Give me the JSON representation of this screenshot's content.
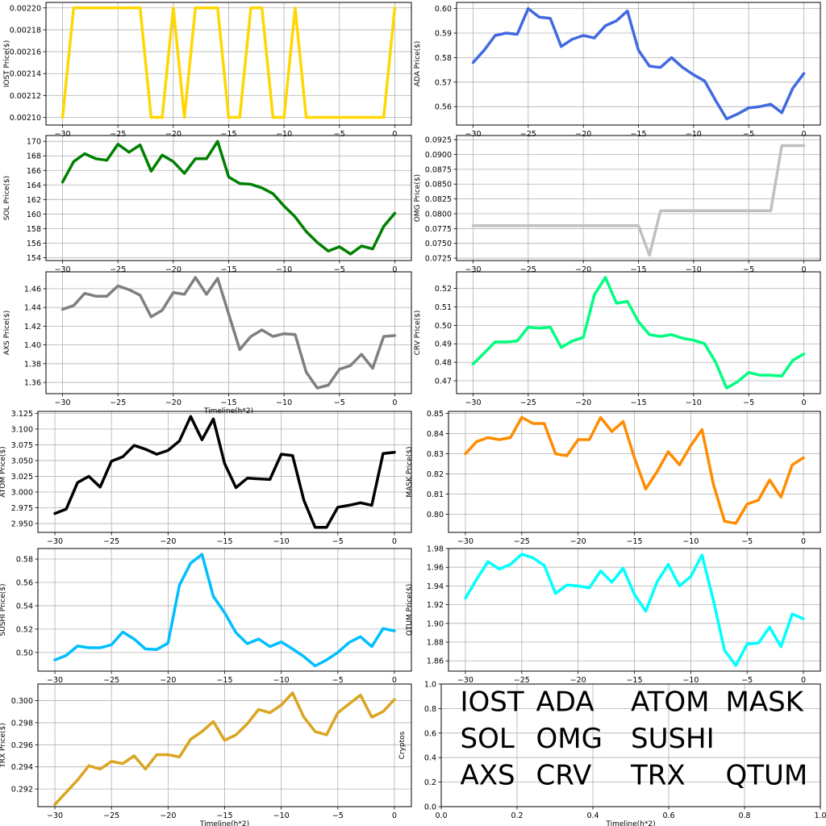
{
  "chart_data": [
    {
      "type": "line",
      "ylabel": "IOST Price($)",
      "xlabel": "",
      "color": "#FFD700",
      "xlim": [
        -31.5,
        1.5
      ],
      "ylim": [
        0.002093,
        0.002205
      ],
      "xticks": [
        -30,
        -25,
        -20,
        -15,
        -10,
        -5,
        0
      ],
      "yticks": [
        0.0021,
        0.00212,
        0.00214,
        0.00216,
        0.00218,
        0.0022
      ],
      "yticklabels": [
        "0.00210",
        "0.00212",
        "0.00214",
        "0.00216",
        "0.00218",
        "0.00220"
      ],
      "x": [
        -30,
        -29,
        -28,
        -27,
        -26,
        -25,
        -24,
        -23,
        -22,
        -21,
        -20,
        -19,
        -18,
        -17,
        -16,
        -15,
        -14,
        -13,
        -12,
        -11,
        -10,
        -9,
        -8,
        -7,
        -6,
        -5,
        -4,
        -3,
        -2,
        -1,
        0
      ],
      "values": [
        0.0021,
        0.0022,
        0.0022,
        0.0022,
        0.0022,
        0.0022,
        0.0022,
        0.0022,
        0.0021,
        0.0021,
        0.0022,
        0.0021,
        0.0022,
        0.0022,
        0.0022,
        0.0021,
        0.0021,
        0.0022,
        0.0022,
        0.0021,
        0.0021,
        0.0022,
        0.0021,
        0.0021,
        0.0021,
        0.0021,
        0.0021,
        0.0021,
        0.0021,
        0.0021,
        0.0022
      ]
    },
    {
      "type": "line",
      "ylabel": "ADA Price($)",
      "xlabel": "",
      "color": "#4169E1",
      "xlim": [
        -31.5,
        1.5
      ],
      "ylim": [
        0.5525,
        0.6025
      ],
      "xticks": [
        -30,
        -25,
        -20,
        -15,
        -10,
        -5,
        0
      ],
      "yticks": [
        0.56,
        0.57,
        0.58,
        0.59,
        0.6
      ],
      "yticklabels": [
        "0.56",
        "0.57",
        "0.58",
        "0.59",
        "0.60"
      ],
      "x": [
        -30,
        -29,
        -28,
        -27,
        -26,
        -25,
        -24,
        -23,
        -22,
        -21,
        -20,
        -19,
        -18,
        -17,
        -16,
        -15,
        -14,
        -13,
        -12,
        -11,
        -10,
        -9,
        -8,
        -7,
        -6,
        -5,
        -4,
        -3,
        -2,
        -1,
        0
      ],
      "values": [
        0.578,
        0.583,
        0.589,
        0.59,
        0.5895,
        0.6,
        0.5965,
        0.596,
        0.5845,
        0.5875,
        0.589,
        0.588,
        0.593,
        0.595,
        0.599,
        0.583,
        0.5765,
        0.576,
        0.58,
        0.576,
        0.573,
        0.5705,
        0.5625,
        0.555,
        0.557,
        0.5595,
        0.56,
        0.561,
        0.5575,
        0.5675,
        0.5735
      ]
    },
    {
      "type": "line",
      "ylabel": "SOL Price($)",
      "xlabel": "",
      "color": "#008000",
      "xlim": [
        -31.5,
        1.5
      ],
      "ylim": [
        153.6,
        170.8
      ],
      "xticks": [
        -30,
        -25,
        -20,
        -15,
        -10,
        -5,
        0
      ],
      "yticks": [
        154,
        156,
        158,
        160,
        162,
        164,
        166,
        168,
        170
      ],
      "yticklabels": [
        "154",
        "156",
        "158",
        "160",
        "162",
        "164",
        "166",
        "168",
        "170"
      ],
      "x": [
        -30,
        -29,
        -28,
        -27,
        -26,
        -25,
        -24,
        -23,
        -22,
        -21,
        -20,
        -19,
        -18,
        -17,
        -16,
        -15,
        -14,
        -13,
        -12,
        -11,
        -10,
        -9,
        -8,
        -7,
        -6,
        -5,
        -4,
        -3,
        -2,
        -1,
        0
      ],
      "values": [
        164.4,
        167.2,
        168.3,
        167.6,
        167.4,
        169.6,
        168.5,
        169.5,
        165.9,
        168.1,
        167.2,
        165.6,
        167.6,
        167.6,
        170.0,
        165.1,
        164.2,
        164.1,
        163.6,
        162.8,
        161.1,
        159.6,
        157.6,
        156.1,
        154.9,
        155.5,
        154.5,
        155.6,
        155.2,
        158.3,
        160.1
      ]
    },
    {
      "type": "line",
      "ylabel": "OMG Price($)",
      "xlabel": "",
      "color": "#C0C0C0",
      "xlim": [
        -31.5,
        1.5
      ],
      "ylim": [
        0.0721,
        0.0932
      ],
      "xticks": [
        -30,
        -25,
        -20,
        -15,
        -10,
        -5,
        0
      ],
      "yticks": [
        0.0725,
        0.075,
        0.0775,
        0.08,
        0.0825,
        0.085,
        0.0875,
        0.09,
        0.0925
      ],
      "yticklabels": [
        "0.0725",
        "0.0750",
        "0.0775",
        "0.0800",
        "0.0825",
        "0.0850",
        "0.0875",
        "0.0900",
        "0.0925"
      ],
      "x": [
        -30,
        -29,
        -28,
        -27,
        -26,
        -25,
        -24,
        -23,
        -22,
        -21,
        -20,
        -19,
        -18,
        -17,
        -16,
        -15,
        -14,
        -13,
        -12,
        -11,
        -10,
        -9,
        -8,
        -7,
        -6,
        -5,
        -4,
        -3,
        -2,
        -1,
        0
      ],
      "values": [
        0.078,
        0.078,
        0.078,
        0.078,
        0.078,
        0.078,
        0.078,
        0.078,
        0.078,
        0.078,
        0.078,
        0.078,
        0.078,
        0.078,
        0.078,
        0.078,
        0.073,
        0.0805,
        0.0805,
        0.0805,
        0.0805,
        0.0805,
        0.0805,
        0.0805,
        0.0805,
        0.0805,
        0.0805,
        0.0805,
        0.0915,
        0.0915,
        0.0915
      ]
    },
    {
      "type": "line",
      "ylabel": "AXS Price($)",
      "xlabel": "Timeline(h*2)",
      "color": "#808080",
      "xlim": [
        -31.5,
        1.5
      ],
      "ylim": [
        1.348,
        1.478
      ],
      "xticks": [
        -30,
        -25,
        -20,
        -15,
        -10,
        -5,
        0
      ],
      "yticks": [
        1.36,
        1.38,
        1.4,
        1.42,
        1.44,
        1.46
      ],
      "yticklabels": [
        "1.36",
        "1.38",
        "1.40",
        "1.42",
        "1.44",
        "1.46"
      ],
      "x": [
        -30,
        -29,
        -28,
        -27,
        -26,
        -25,
        -24,
        -23,
        -22,
        -21,
        -20,
        -19,
        -18,
        -17,
        -16,
        -15,
        -14,
        -13,
        -12,
        -11,
        -10,
        -9,
        -8,
        -7,
        -6,
        -5,
        -4,
        -3,
        -2,
        -1,
        0
      ],
      "values": [
        1.438,
        1.442,
        1.455,
        1.452,
        1.452,
        1.463,
        1.459,
        1.453,
        1.43,
        1.437,
        1.456,
        1.454,
        1.472,
        1.454,
        1.471,
        1.433,
        1.395,
        1.409,
        1.416,
        1.409,
        1.412,
        1.411,
        1.371,
        1.354,
        1.357,
        1.374,
        1.378,
        1.39,
        1.375,
        1.409,
        1.41
      ]
    },
    {
      "type": "line",
      "ylabel": "CRV Price($)",
      "xlabel": "",
      "color": "#00FF7F",
      "xlim": [
        -31.5,
        1.5
      ],
      "ylim": [
        0.463,
        0.529
      ],
      "xticks": [
        -30,
        -25,
        -20,
        -15,
        -10,
        -5,
        0
      ],
      "yticks": [
        0.47,
        0.48,
        0.49,
        0.5,
        0.51,
        0.52
      ],
      "yticklabels": [
        "0.47",
        "0.48",
        "0.49",
        "0.50",
        "0.51",
        "0.52"
      ],
      "x": [
        -30,
        -29,
        -28,
        -27,
        -26,
        -25,
        -24,
        -23,
        -22,
        -21,
        -20,
        -19,
        -18,
        -17,
        -16,
        -15,
        -14,
        -13,
        -12,
        -11,
        -10,
        -9,
        -8,
        -7,
        -6,
        -5,
        -4,
        -3,
        -2,
        -1,
        0
      ],
      "values": [
        0.479,
        0.485,
        0.491,
        0.491,
        0.4915,
        0.499,
        0.4985,
        0.499,
        0.488,
        0.4915,
        0.4935,
        0.5165,
        0.526,
        0.512,
        0.513,
        0.502,
        0.495,
        0.494,
        0.495,
        0.493,
        0.492,
        0.49,
        0.48,
        0.466,
        0.4695,
        0.4745,
        0.473,
        0.473,
        0.4725,
        0.481,
        0.4845
      ]
    },
    {
      "type": "line",
      "ylabel": "ATOM  Price($)",
      "xlabel": "",
      "color": "#000000",
      "xlim": [
        -31.5,
        1.5
      ],
      "ylim": [
        2.936,
        3.128
      ],
      "xticks": [
        -30,
        -25,
        -20,
        -15,
        -10,
        -5,
        0
      ],
      "yticks": [
        2.95,
        2.975,
        3.0,
        3.025,
        3.05,
        3.075,
        3.1,
        3.125
      ],
      "yticklabels": [
        "2.950",
        "2.975",
        "3.000",
        "3.025",
        "3.050",
        "3.075",
        "3.100",
        "3.125"
      ],
      "x": [
        -30,
        -29,
        -28,
        -27,
        -26,
        -25,
        -24,
        -23,
        -22,
        -21,
        -20,
        -19,
        -18,
        -17,
        -16,
        -15,
        -14,
        -13,
        -12,
        -11,
        -10,
        -9,
        -8,
        -7,
        -6,
        -5,
        -4,
        -3,
        -2,
        -1,
        0
      ],
      "values": [
        2.966,
        2.973,
        3.015,
        3.025,
        3.008,
        3.049,
        3.056,
        3.074,
        3.068,
        3.06,
        3.066,
        3.081,
        3.12,
        3.083,
        3.116,
        3.045,
        3.007,
        3.022,
        3.021,
        3.02,
        3.06,
        3.058,
        2.987,
        2.944,
        2.944,
        2.976,
        2.979,
        2.983,
        2.979,
        3.061,
        3.063
      ]
    },
    {
      "type": "line",
      "ylabel": "MASK  Price($)",
      "xlabel": "",
      "color": "#FF8C00",
      "xlim": [
        -31.5,
        1.5
      ],
      "ylim": [
        0.791,
        0.851
      ],
      "xticks": [
        -30,
        -25,
        -20,
        -15,
        -10,
        -5,
        0
      ],
      "yticks": [
        0.8,
        0.81,
        0.82,
        0.83,
        0.84,
        0.85
      ],
      "yticklabels": [
        "0.80",
        "0.81",
        "0.82",
        "0.83",
        "0.84",
        "0.85"
      ],
      "x": [
        -30,
        -29,
        -28,
        -27,
        -26,
        -25,
        -24,
        -23,
        -22,
        -21,
        -20,
        -19,
        -18,
        -17,
        -16,
        -15,
        -14,
        -13,
        -12,
        -11,
        -10,
        -9,
        -8,
        -7,
        -6,
        -5,
        -4,
        -3,
        -2,
        -1,
        0
      ],
      "values": [
        0.83,
        0.836,
        0.838,
        0.837,
        0.838,
        0.848,
        0.845,
        0.845,
        0.83,
        0.829,
        0.837,
        0.837,
        0.848,
        0.841,
        0.846,
        0.828,
        0.8125,
        0.821,
        0.831,
        0.8245,
        0.834,
        0.842,
        0.815,
        0.7965,
        0.7955,
        0.805,
        0.807,
        0.817,
        0.8085,
        0.8245,
        0.828
      ]
    },
    {
      "type": "line",
      "ylabel": "SUSHI  Price($)",
      "xlabel": "",
      "color": "#00BFFF",
      "xlim": [
        -31.5,
        1.5
      ],
      "ylim": [
        0.484,
        0.589
      ],
      "xticks": [
        -30,
        -25,
        -20,
        -15,
        -10,
        -5,
        0
      ],
      "yticks": [
        0.5,
        0.52,
        0.54,
        0.56,
        0.58
      ],
      "yticklabels": [
        "0.50",
        "0.52",
        "0.54",
        "0.56",
        "0.58"
      ],
      "x": [
        -30,
        -29,
        -28,
        -27,
        -26,
        -25,
        -24,
        -23,
        -22,
        -21,
        -20,
        -19,
        -18,
        -17,
        -16,
        -15,
        -14,
        -13,
        -12,
        -11,
        -10,
        -9,
        -8,
        -7,
        -6,
        -5,
        -4,
        -3,
        -2,
        -1,
        0
      ],
      "values": [
        0.4935,
        0.4975,
        0.5055,
        0.504,
        0.504,
        0.5065,
        0.5175,
        0.5115,
        0.503,
        0.5025,
        0.508,
        0.5575,
        0.5765,
        0.584,
        0.548,
        0.534,
        0.517,
        0.5075,
        0.5115,
        0.505,
        0.509,
        0.503,
        0.4965,
        0.4885,
        0.4935,
        0.5,
        0.5085,
        0.5135,
        0.505,
        0.5205,
        0.5185
      ]
    },
    {
      "type": "line",
      "ylabel": "QTUM Price($)",
      "xlabel": "",
      "color": "#00FFFF",
      "xlim": [
        -31.5,
        1.5
      ],
      "ylim": [
        1.849,
        1.98
      ],
      "xticks": [
        -30,
        -25,
        -20,
        -15,
        -10,
        -5,
        0
      ],
      "yticks": [
        1.86,
        1.88,
        1.9,
        1.92,
        1.94,
        1.96,
        1.98
      ],
      "yticklabels": [
        "1.86",
        "1.88",
        "1.90",
        "1.92",
        "1.94",
        "1.96",
        "1.98"
      ],
      "x": [
        -30,
        -29,
        -28,
        -27,
        -26,
        -25,
        -24,
        -23,
        -22,
        -21,
        -20,
        -19,
        -18,
        -17,
        -16,
        -15,
        -14,
        -13,
        -12,
        -11,
        -10,
        -9,
        -8,
        -7,
        -6,
        -5,
        -4,
        -3,
        -2,
        -1,
        0
      ],
      "values": [
        1.927,
        1.947,
        1.966,
        1.958,
        1.963,
        1.974,
        1.97,
        1.962,
        1.932,
        1.941,
        1.94,
        1.938,
        1.956,
        1.944,
        1.959,
        1.931,
        1.913,
        1.944,
        1.963,
        1.94,
        1.95,
        1.973,
        1.925,
        1.871,
        1.855,
        1.878,
        1.879,
        1.896,
        1.875,
        1.91,
        1.905
      ]
    },
    {
      "type": "line",
      "ylabel": "TRX Price($)",
      "xlabel": "Timeline(h*2)",
      "color": "#DAA520",
      "xlim": [
        -31.5,
        1.5
      ],
      "ylim": [
        0.2904,
        0.3015
      ],
      "xticks": [
        -30,
        -25,
        -20,
        -15,
        -10,
        -5,
        0
      ],
      "yticks": [
        0.292,
        0.294,
        0.296,
        0.298,
        0.3
      ],
      "yticklabels": [
        "0.292",
        "0.294",
        "0.296",
        "0.298",
        "0.300"
      ],
      "x": [
        -30,
        -29,
        -28,
        -27,
        -26,
        -25,
        -24,
        -23,
        -22,
        -21,
        -20,
        -19,
        -18,
        -17,
        -16,
        -15,
        -14,
        -13,
        -12,
        -11,
        -10,
        -9,
        -8,
        -7,
        -6,
        -5,
        -4,
        -3,
        -2,
        -1,
        0
      ],
      "values": [
        0.2906,
        0.2917,
        0.2928,
        0.2941,
        0.2938,
        0.2945,
        0.2943,
        0.295,
        0.2938,
        0.2951,
        0.2951,
        0.2949,
        0.2965,
        0.2972,
        0.2981,
        0.2964,
        0.2969,
        0.2979,
        0.2992,
        0.2989,
        0.2996,
        0.3007,
        0.2985,
        0.2972,
        0.2969,
        0.2989,
        0.2997,
        0.3005,
        0.2985,
        0.299,
        0.3001
      ]
    },
    {
      "type": "legend",
      "ylabel": "Cryptos",
      "xlabel": "Timeline(h*2)",
      "xlim": [
        0,
        1
      ],
      "ylim": [
        0,
        1
      ],
      "xticks": [
        0,
        0.2,
        0.4,
        0.6,
        0.8,
        1.0
      ],
      "xticklabels": [
        "0.0",
        "0.2",
        "0.4",
        "0.6",
        "0.8",
        "1.0"
      ],
      "yticks": [
        0,
        0.2,
        0.4,
        0.6,
        0.8,
        1.0
      ],
      "yticklabels": [
        "0.0",
        "0.2",
        "0.4",
        "0.6",
        "0.8",
        "1.0"
      ],
      "labels": [
        {
          "text": "IOST",
          "color": "#FFD700",
          "x": 0.05,
          "y": 0.78
        },
        {
          "text": "ADA",
          "color": "#4169E1",
          "x": 0.25,
          "y": 0.78
        },
        {
          "text": "ATOM",
          "color": "#000000",
          "x": 0.5,
          "y": 0.78
        },
        {
          "text": "MASK",
          "color": "#FF8C00",
          "x": 0.75,
          "y": 0.78
        },
        {
          "text": "SOL",
          "color": "#008000",
          "x": 0.05,
          "y": 0.48
        },
        {
          "text": "OMG",
          "color": "#C0C0C0",
          "x": 0.25,
          "y": 0.48
        },
        {
          "text": "SUSHI",
          "color": "#00BFFF",
          "x": 0.5,
          "y": 0.48
        },
        {
          "text": "AXS",
          "color": "#808080",
          "x": 0.05,
          "y": 0.18
        },
        {
          "text": "CRV",
          "color": "#00FF7F",
          "x": 0.25,
          "y": 0.18
        },
        {
          "text": "TRX",
          "color": "#DAA520",
          "x": 0.5,
          "y": 0.18
        },
        {
          "text": "QTUM",
          "color": "#00FFFF",
          "x": 0.75,
          "y": 0.18
        }
      ]
    }
  ]
}
